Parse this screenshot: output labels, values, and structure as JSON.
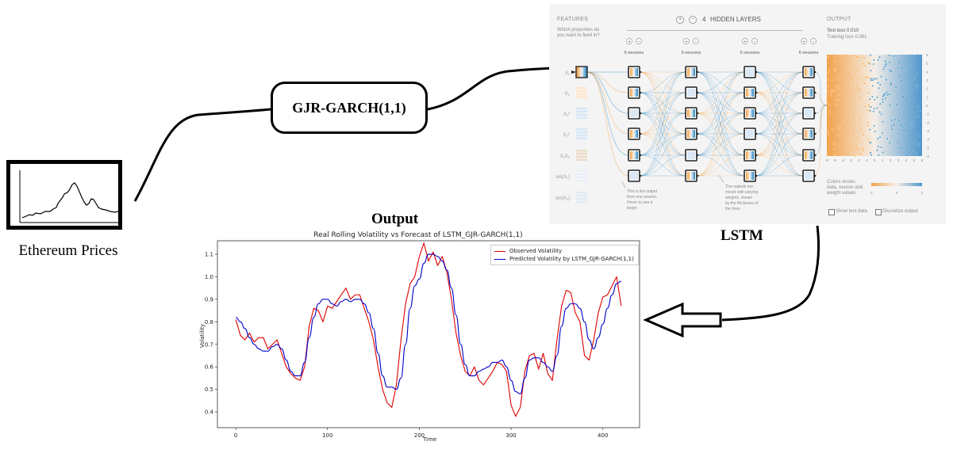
{
  "ethereum": {
    "label": "Ethereum Prices"
  },
  "garch": {
    "label": "GJR-GARCH(1,1)"
  },
  "lstm": {
    "label": "LSTM",
    "panel": {
      "features_header": "FEATURES",
      "features_q1": "Which properties do",
      "features_q2": "you want to feed in?",
      "hidden_layers_count": "4",
      "hidden_layers_label": "HIDDEN LAYERS",
      "output_header": "OUTPUT",
      "test_loss": "Test loss 0.010",
      "training_loss": "Training loss 0.061",
      "neuron_label": "6 neurons",
      "feature_labels": [
        "X₁",
        "X₂",
        "X₁²",
        "X₂²",
        "X₁X₂",
        "sin(X₁)",
        "sin(X₂)"
      ],
      "note1": [
        "This is the output",
        "from one neuron.",
        "Hover to see it",
        "larger."
      ],
      "note2": [
        "The outputs are",
        "mixed with varying",
        "weights, shown",
        "by the thickness of",
        "the lines."
      ],
      "colors_text": [
        "Colors shows",
        "data, neuron and",
        "weight values."
      ],
      "scale_labels": [
        "-1",
        "0",
        "1"
      ],
      "show_test_data": "Show test data",
      "discretize_output": "Discretize output",
      "heatmap_ticks": [
        "-6",
        "-5",
        "-4",
        "-3",
        "-2",
        "-1",
        "0",
        "1",
        "2",
        "3",
        "4",
        "5",
        "6"
      ]
    }
  },
  "output": {
    "label": "Output"
  },
  "colors": {
    "observed": "#e00000",
    "predicted": "#0000cc",
    "orange": "#f59322",
    "blue": "#0877bd"
  },
  "chart_data": {
    "type": "line",
    "title": "Real Rolling Volatility vs Forecast of LSTM_GJR-GARCH(1,1)",
    "xlabel": "Time",
    "ylabel": "Volatility",
    "xlim": [
      -20,
      440
    ],
    "ylim": [
      0.33,
      1.16
    ],
    "xticks": [
      0,
      100,
      200,
      300,
      400
    ],
    "yticks": [
      0.4,
      0.5,
      0.6,
      0.7,
      0.8,
      0.9,
      1.0,
      1.1
    ],
    "legend_position": "top-right",
    "series": [
      {
        "name": "Observed Volatility",
        "x": [
          0,
          5,
          10,
          15,
          20,
          25,
          30,
          35,
          40,
          45,
          50,
          55,
          60,
          65,
          70,
          75,
          80,
          85,
          90,
          95,
          100,
          105,
          110,
          115,
          120,
          125,
          130,
          135,
          140,
          145,
          150,
          155,
          160,
          165,
          170,
          175,
          180,
          185,
          190,
          195,
          200,
          205,
          210,
          215,
          220,
          225,
          230,
          235,
          240,
          245,
          250,
          255,
          260,
          265,
          270,
          275,
          280,
          285,
          290,
          295,
          300,
          305,
          310,
          315,
          320,
          325,
          330,
          335,
          340,
          345,
          350,
          355,
          360,
          365,
          370,
          375,
          380,
          385,
          390,
          395,
          400,
          405,
          410,
          415,
          420
        ],
        "y": [
          0.81,
          0.74,
          0.72,
          0.75,
          0.71,
          0.73,
          0.73,
          0.68,
          0.7,
          0.72,
          0.66,
          0.6,
          0.57,
          0.55,
          0.54,
          0.6,
          0.78,
          0.86,
          0.85,
          0.8,
          0.87,
          0.86,
          0.89,
          0.92,
          0.95,
          0.9,
          0.92,
          0.92,
          0.86,
          0.8,
          0.72,
          0.6,
          0.5,
          0.44,
          0.42,
          0.52,
          0.72,
          0.88,
          0.97,
          1.0,
          1.09,
          1.15,
          1.07,
          1.11,
          1.05,
          1.09,
          1.02,
          0.9,
          0.75,
          0.65,
          0.58,
          0.56,
          0.6,
          0.54,
          0.52,
          0.55,
          0.58,
          0.62,
          0.61,
          0.58,
          0.43,
          0.38,
          0.42,
          0.58,
          0.65,
          0.66,
          0.59,
          0.66,
          0.57,
          0.54,
          0.72,
          0.87,
          0.94,
          0.93,
          0.84,
          0.8,
          0.65,
          0.63,
          0.72,
          0.84,
          0.91,
          0.92,
          0.96,
          1.0,
          0.87
        ]
      },
      {
        "name": "Predicted Volatility by LSTM_GJR-GARCH(1,1)",
        "x": [
          0,
          5,
          10,
          15,
          20,
          25,
          30,
          35,
          40,
          45,
          50,
          55,
          60,
          65,
          70,
          75,
          80,
          85,
          90,
          95,
          100,
          105,
          110,
          115,
          120,
          125,
          130,
          135,
          140,
          145,
          150,
          155,
          160,
          165,
          170,
          175,
          180,
          185,
          190,
          195,
          200,
          205,
          210,
          215,
          220,
          225,
          230,
          235,
          240,
          245,
          250,
          255,
          260,
          265,
          270,
          275,
          280,
          285,
          290,
          295,
          300,
          305,
          310,
          315,
          320,
          325,
          330,
          335,
          340,
          345,
          350,
          355,
          360,
          365,
          370,
          375,
          380,
          385,
          390,
          395,
          400,
          405,
          410,
          415,
          420
        ],
        "y": [
          0.82,
          0.8,
          0.77,
          0.73,
          0.7,
          0.68,
          0.67,
          0.67,
          0.69,
          0.7,
          0.68,
          0.63,
          0.58,
          0.56,
          0.56,
          0.62,
          0.73,
          0.82,
          0.88,
          0.9,
          0.9,
          0.88,
          0.87,
          0.89,
          0.9,
          0.89,
          0.9,
          0.9,
          0.88,
          0.84,
          0.77,
          0.66,
          0.56,
          0.51,
          0.51,
          0.5,
          0.55,
          0.7,
          0.86,
          0.96,
          0.99,
          1.06,
          1.1,
          1.1,
          1.09,
          1.07,
          1.03,
          0.95,
          0.83,
          0.7,
          0.61,
          0.56,
          0.56,
          0.58,
          0.59,
          0.6,
          0.62,
          0.62,
          0.63,
          0.6,
          0.54,
          0.49,
          0.48,
          0.55,
          0.63,
          0.64,
          0.64,
          0.62,
          0.6,
          0.58,
          0.65,
          0.78,
          0.86,
          0.88,
          0.88,
          0.86,
          0.8,
          0.72,
          0.68,
          0.73,
          0.79,
          0.86,
          0.92,
          0.97,
          0.98
        ]
      }
    ]
  }
}
